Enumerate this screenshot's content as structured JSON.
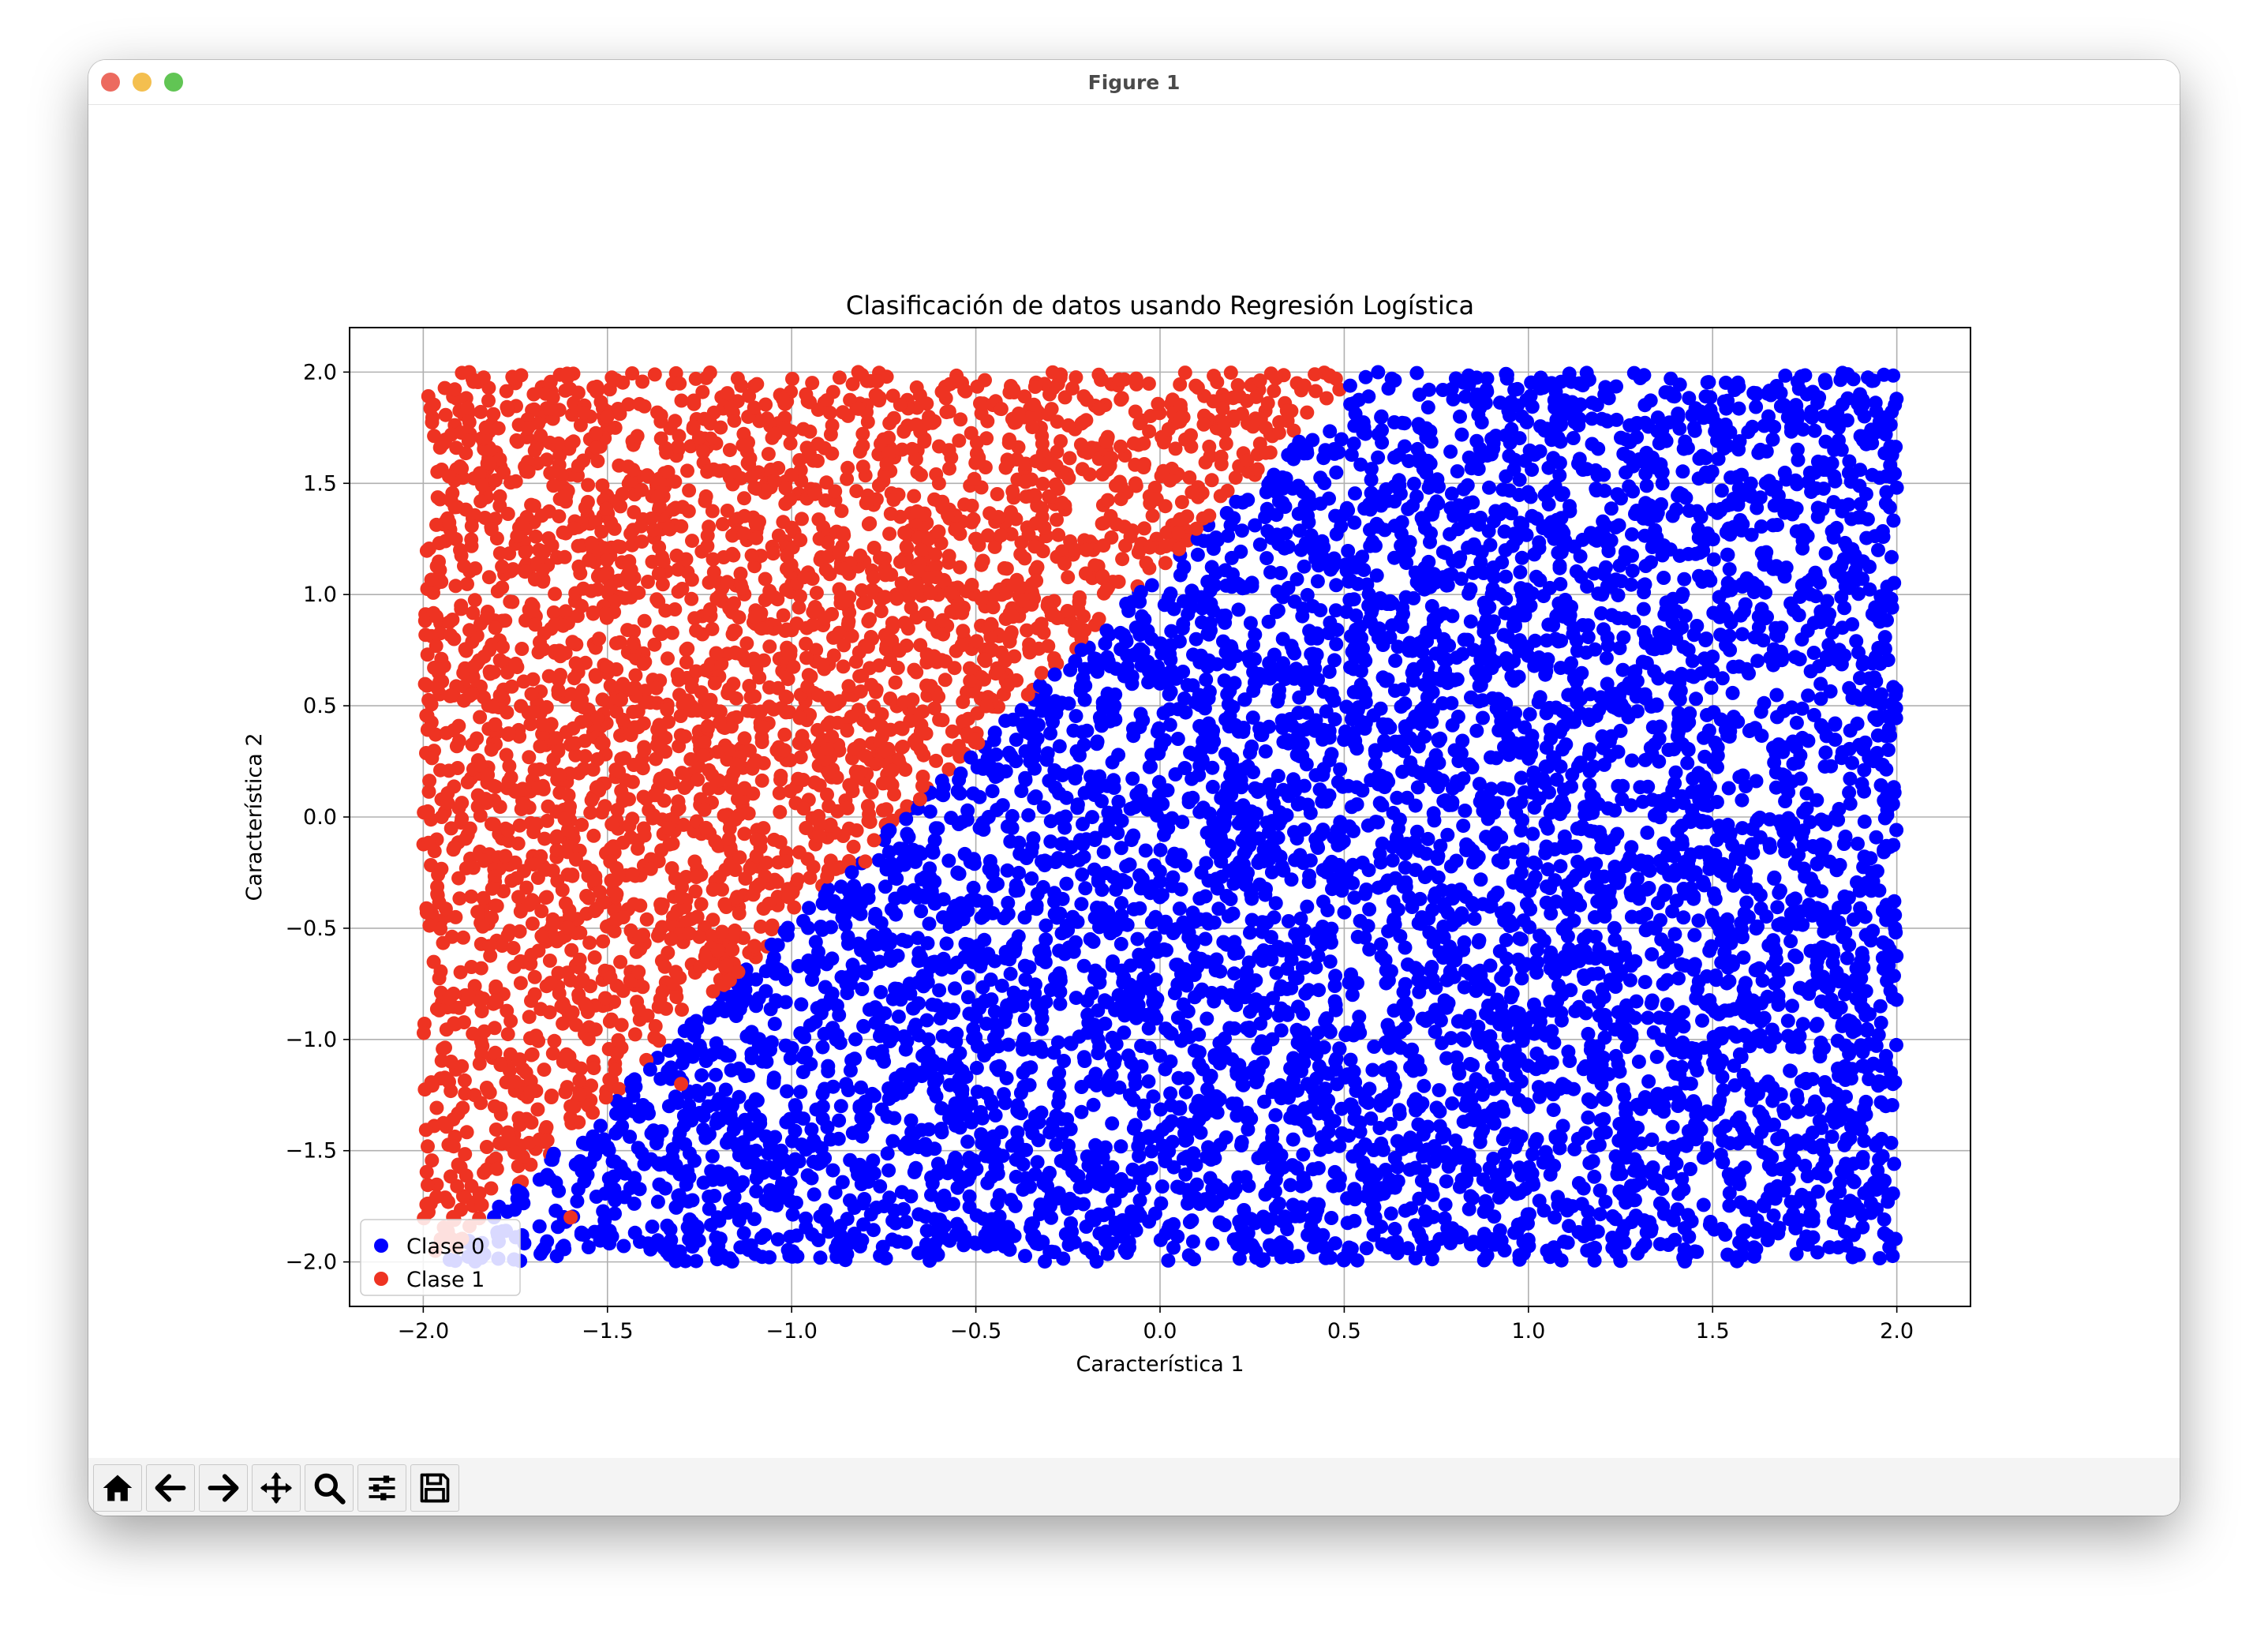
{
  "window": {
    "title": "Figure 1"
  },
  "toolbar": [
    {
      "icon": "home-icon",
      "name": "home-button"
    },
    {
      "icon": "back-arrow-icon",
      "name": "back-button"
    },
    {
      "icon": "forward-arrow-icon",
      "name": "forward-button"
    },
    {
      "icon": "pan-icon",
      "name": "pan-button"
    },
    {
      "icon": "zoom-icon",
      "name": "zoom-button"
    },
    {
      "icon": "configure-subplots-icon",
      "name": "configure-subplots-button"
    },
    {
      "icon": "save-icon",
      "name": "save-button"
    }
  ],
  "colors": {
    "clase0": "#0000ff",
    "clase1": "#ee3322"
  },
  "chart_data": {
    "type": "scatter",
    "title": "Clasificación de datos usando Regresión Logística",
    "xlabel": "Característica 1",
    "ylabel": "Característica 2",
    "xlim": [
      -2.2,
      2.2
    ],
    "ylim": [
      -2.2,
      2.2
    ],
    "xticks": [
      -2.0,
      -1.5,
      -1.0,
      -0.5,
      0.0,
      0.5,
      1.0,
      1.5,
      2.0
    ],
    "yticks": [
      -2.0,
      -1.5,
      -1.0,
      -0.5,
      0.0,
      0.5,
      1.0,
      1.5,
      2.0
    ],
    "xtick_labels": [
      "−2.0",
      "−1.5",
      "−1.0",
      "−0.5",
      "0.0",
      "0.5",
      "1.0",
      "1.5",
      "2.0"
    ],
    "ytick_labels": [
      "−2.0",
      "−1.5",
      "−1.0",
      "−0.5",
      "0.0",
      "0.5",
      "1.0",
      "1.5",
      "2.0"
    ],
    "grid": true,
    "legend_position": "lower left",
    "series": [
      {
        "name": "Clase 0",
        "color": "#0000ff",
        "region": "x - 2.5*y/3.99 > -0.7",
        "points": [
          [
            1.5,
            1.8
          ],
          [
            1.2,
            1.0
          ],
          [
            0.8,
            0.3
          ],
          [
            1.7,
            -0.5
          ],
          [
            0.4,
            -1.2
          ],
          [
            -0.3,
            -1.6
          ],
          [
            -0.8,
            -1.3
          ],
          [
            1.0,
            -1.9
          ],
          [
            1.9,
            1.9
          ],
          [
            0.6,
            1.4
          ],
          [
            0.2,
            -0.3
          ],
          [
            -0.5,
            -0.9
          ],
          [
            1.3,
            -1.1
          ],
          [
            0.9,
            1.7
          ],
          [
            1.8,
            0.4
          ],
          [
            0.0,
            0.6
          ],
          [
            -1.2,
            -1.8
          ],
          [
            1.4,
            0.2
          ],
          [
            0.3,
            1.1
          ],
          [
            -0.2,
            -0.1
          ]
        ]
      },
      {
        "name": "Clase 1",
        "color": "#ee3322",
        "region": "x - 2.5*y/3.99 <= -0.7",
        "points": [
          [
            -1.5,
            1.8
          ],
          [
            -1.9,
            1.2
          ],
          [
            -1.1,
            0.9
          ],
          [
            -0.6,
            1.5
          ],
          [
            -1.8,
            -0.4
          ],
          [
            -1.6,
            -1.3
          ],
          [
            -1.2,
            -0.6
          ],
          [
            -0.9,
            0.2
          ],
          [
            -0.3,
            1.9
          ],
          [
            -1.9,
            -1.9
          ],
          [
            -1.4,
            0.3
          ],
          [
            -0.4,
            0.9
          ],
          [
            0.2,
            1.8
          ],
          [
            -1.7,
            1.9
          ],
          [
            -1.0,
            1.3
          ],
          [
            -0.8,
            -0.2
          ],
          [
            -1.3,
            -1.2
          ],
          [
            -1.95,
            0.0
          ],
          [
            -0.2,
            1.2
          ],
          [
            -1.6,
            -1.8
          ]
        ]
      }
    ]
  }
}
